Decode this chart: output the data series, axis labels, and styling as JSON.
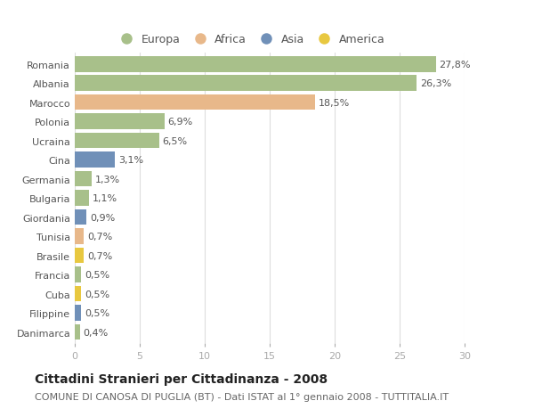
{
  "countries": [
    "Romania",
    "Albania",
    "Marocco",
    "Polonia",
    "Ucraina",
    "Cina",
    "Germania",
    "Bulgaria",
    "Giordania",
    "Tunisia",
    "Brasile",
    "Francia",
    "Cuba",
    "Filippine",
    "Danimarca"
  ],
  "values": [
    27.8,
    26.3,
    18.5,
    6.9,
    6.5,
    3.1,
    1.3,
    1.1,
    0.9,
    0.7,
    0.7,
    0.5,
    0.5,
    0.5,
    0.4
  ],
  "labels": [
    "27,8%",
    "26,3%",
    "18,5%",
    "6,9%",
    "6,5%",
    "3,1%",
    "1,3%",
    "1,1%",
    "0,9%",
    "0,7%",
    "0,7%",
    "0,5%",
    "0,5%",
    "0,5%",
    "0,4%"
  ],
  "continents": [
    "Europa",
    "Europa",
    "Africa",
    "Europa",
    "Europa",
    "Asia",
    "Europa",
    "Europa",
    "Asia",
    "Africa",
    "America",
    "Europa",
    "America",
    "Asia",
    "Europa"
  ],
  "colors": {
    "Europa": "#a8c08a",
    "Africa": "#e8b88a",
    "Asia": "#7090b8",
    "America": "#e8c840"
  },
  "title": "Cittadini Stranieri per Cittadinanza - 2008",
  "subtitle": "COMUNE DI CANOSA DI PUGLIA (BT) - Dati ISTAT al 1° gennaio 2008 - TUTTITALIA.IT",
  "xlim": [
    0,
    30
  ],
  "xticks": [
    0,
    5,
    10,
    15,
    20,
    25,
    30
  ],
  "background_color": "#ffffff",
  "grid_color": "#dddddd",
  "bar_height": 0.82,
  "label_fontsize": 8,
  "ytick_fontsize": 8,
  "xtick_fontsize": 8,
  "title_fontsize": 10,
  "subtitle_fontsize": 8
}
